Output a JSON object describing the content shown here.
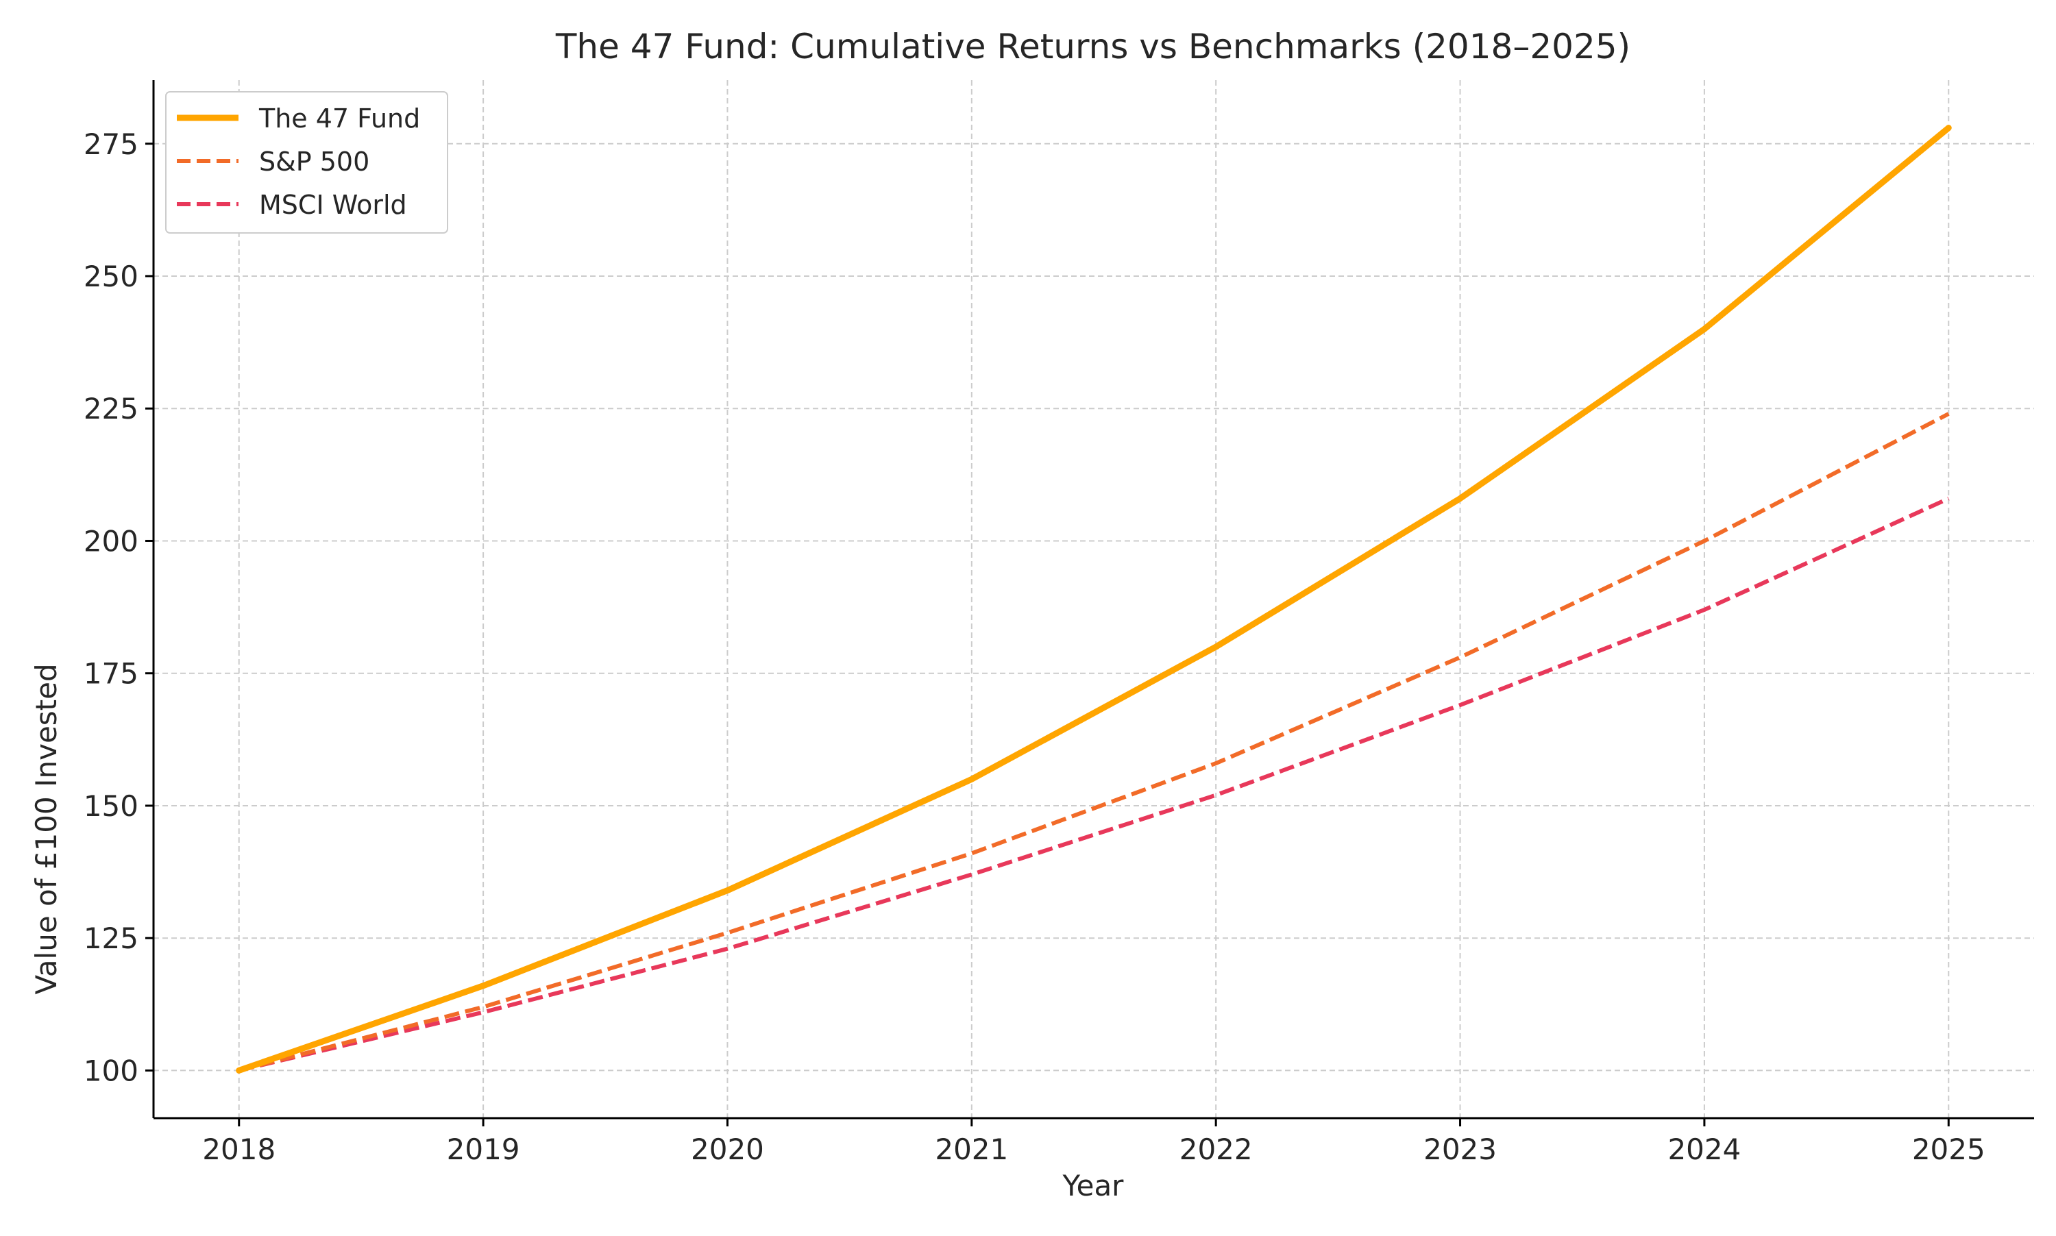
{
  "chart_data": {
    "type": "line",
    "title": "The 47 Fund: Cumulative Returns vs Benchmarks (2018–2025)",
    "xlabel": "Year",
    "ylabel": "Value of £100 Invested",
    "x": [
      2018,
      2019,
      2020,
      2021,
      2022,
      2023,
      2024,
      2025
    ],
    "xlim": [
      2017.65,
      2025.35
    ],
    "ylim": [
      91,
      287
    ],
    "y_ticks": [
      100,
      125,
      150,
      175,
      200,
      225,
      250,
      275
    ],
    "grid": true,
    "legend_position": "top-left",
    "series": [
      {
        "name": "The 47 Fund",
        "values": [
          100,
          116,
          134,
          155,
          180,
          208,
          240,
          278
        ],
        "color": "#FFA500",
        "style": "solid"
      },
      {
        "name": "S&P 500",
        "values": [
          100,
          112,
          126,
          141,
          158,
          178,
          200,
          224
        ],
        "color": "#F26B28",
        "style": "dashed"
      },
      {
        "name": "MSCI World",
        "values": [
          100,
          111,
          123,
          137,
          152,
          169,
          187,
          208
        ],
        "color": "#E8385A",
        "style": "dashed"
      }
    ]
  }
}
